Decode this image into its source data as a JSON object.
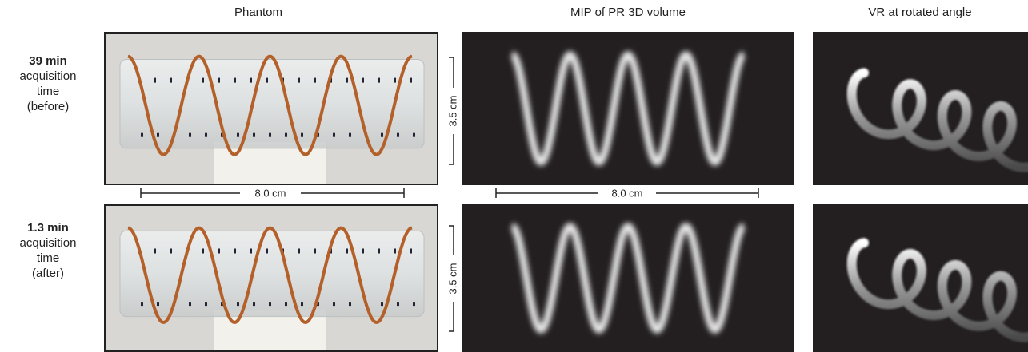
{
  "header": {
    "columns": [
      "Phantom",
      "MIP of PR 3D volume",
      "VR at rotated angle"
    ]
  },
  "rows": [
    {
      "time": "39 min",
      "lines": [
        "acquisition",
        "time",
        "(before)"
      ]
    },
    {
      "time": "1.3 min",
      "lines": [
        "acquisition",
        "time",
        "(after)"
      ]
    }
  ],
  "scale_bars": {
    "length": "8.0 cm",
    "height": "3.5 cm"
  }
}
